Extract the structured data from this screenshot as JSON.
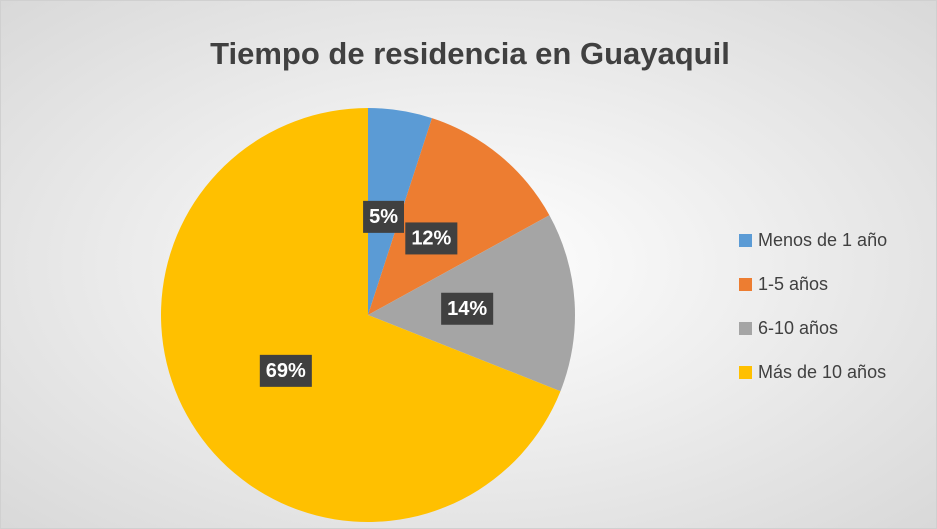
{
  "chart_data": {
    "type": "pie",
    "title": "Tiempo de residencia en Guayaquil",
    "categories": [
      "Menos de 1 año",
      "1-5 años",
      "6-10 años",
      "Más de 10 años"
    ],
    "values": [
      5,
      12,
      14,
      69
    ],
    "value_labels": [
      "5%",
      "12%",
      "14%",
      "69%"
    ],
    "colors": [
      "#5b9bd5",
      "#ed7d31",
      "#a5a5a5",
      "#ffc000"
    ],
    "legend": "right"
  }
}
